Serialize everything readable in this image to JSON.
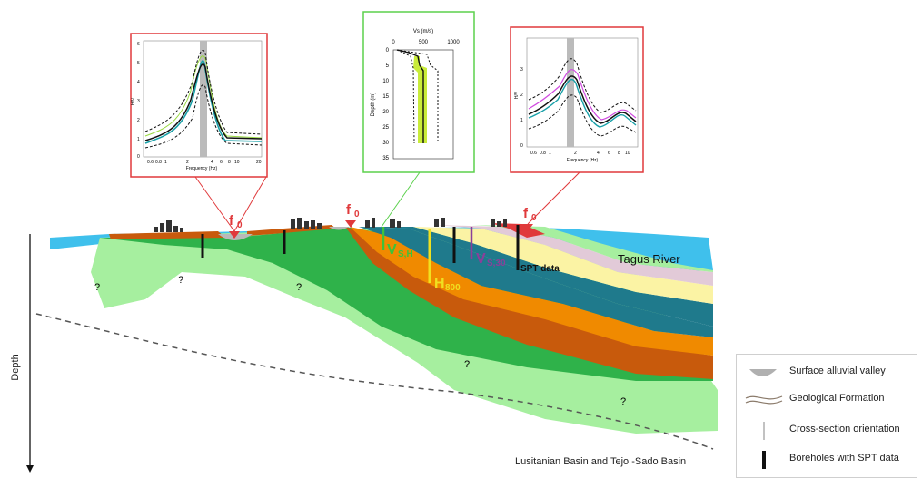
{
  "labels": {
    "f0_left": "f",
    "f0_center": "f",
    "f0_right": "f",
    "f0_sub": "0",
    "vsh_main": "V",
    "vsh_sub": "S,H",
    "h800_main": "H",
    "h800_sub": "800",
    "vs30_main": "V",
    "vs30_sub": "S,30",
    "spt": "SPT data",
    "river": "Tagus River",
    "depth": "Depth",
    "basins": "Lusitanian Basin and Tejo -Sado Basin",
    "question": "?"
  },
  "hvsr_left": {
    "xlabel": "Frequency (Hz)",
    "ylabel": "H/V",
    "xticks": [
      "0.6",
      "0.8",
      "1",
      "2",
      "4",
      "6",
      "8",
      "10",
      "20"
    ],
    "yticks": [
      "0",
      "1",
      "2",
      "3",
      "4",
      "5",
      "6"
    ]
  },
  "vs_profile": {
    "title": "Vs (m/s)",
    "xticks": [
      "0",
      "500",
      "1000"
    ],
    "ylabel": "Depth (m)",
    "yticks": [
      "0",
      "5",
      "10",
      "15",
      "20",
      "25",
      "30",
      "35"
    ]
  },
  "hvsr_right": {
    "xlabel": "Frequency (Hz)",
    "ylabel": "H/V",
    "xticks": [
      "0.6",
      "0.8",
      "1",
      "2",
      "4",
      "6",
      "8",
      "10"
    ],
    "yticks": [
      "0",
      "1",
      "2",
      "3"
    ]
  },
  "legend": {
    "items": [
      {
        "label": "Surface alluvial valley",
        "icon": "alluvial-valley-icon"
      },
      {
        "label": "Geological Formation",
        "icon": "formation-lines-icon"
      },
      {
        "label": "Cross-section orientation",
        "icon": "section-line-icon"
      },
      {
        "label": "Boreholes with SPT data",
        "icon": "borehole-icon"
      }
    ]
  },
  "colors": {
    "water": "#3fc0ec",
    "light_green": "#a6ef9f",
    "green": "#2fb24a",
    "teal": "#1f7a8c",
    "orange": "#f08a00",
    "brown": "#c85a0c",
    "yellow": "#fbf3a4",
    "pink": "#e2cad8",
    "red_box": "#e0393b",
    "green_box": "#5bd14c",
    "vsh_color": "#3ec23a",
    "h800_color": "#f0e020",
    "vs30_color": "#8a3f9a"
  }
}
